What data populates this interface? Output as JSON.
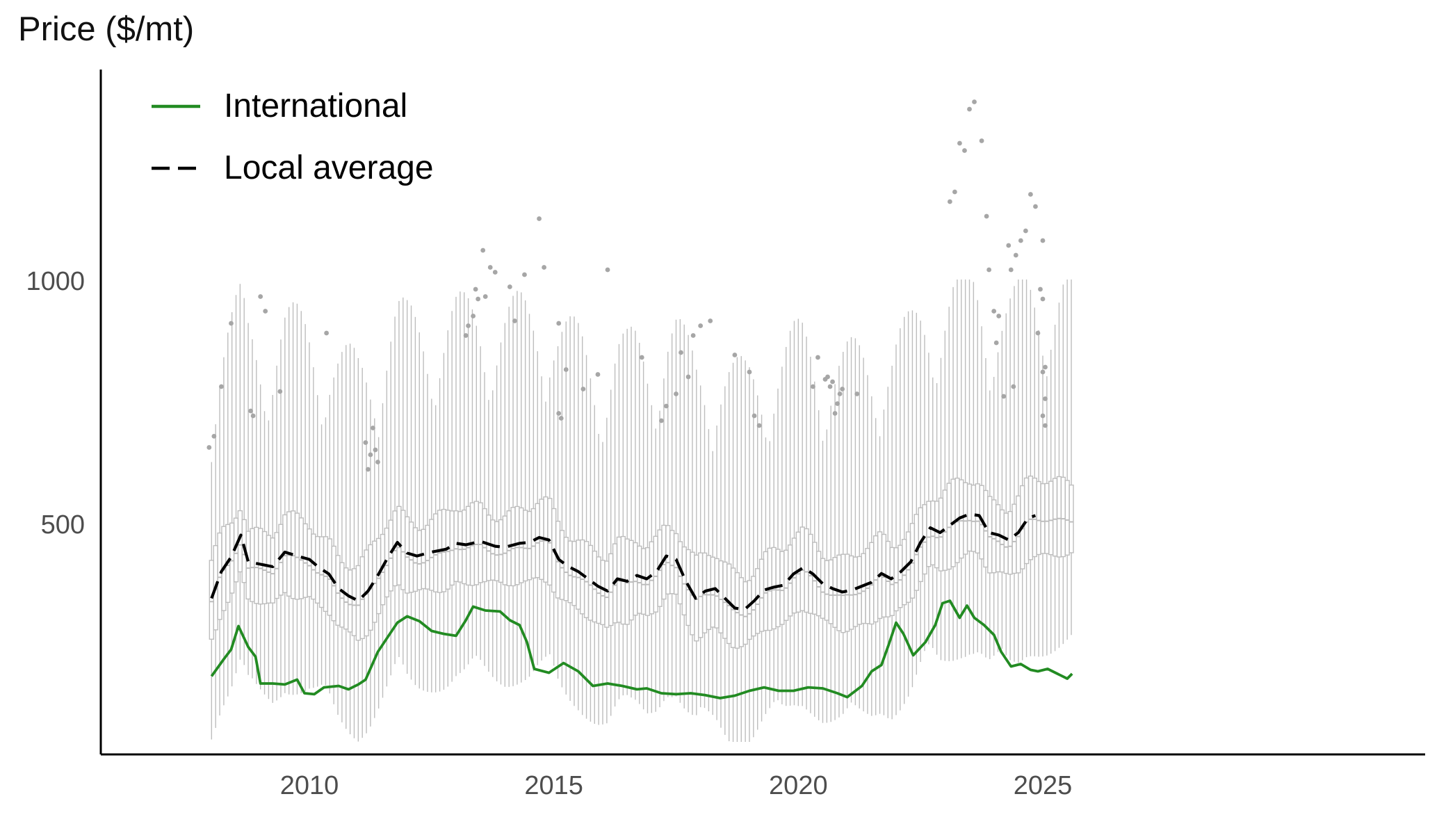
{
  "chart_data": {
    "type": "line",
    "ylabel": "Price ($/mt)",
    "xlabel": "",
    "xlim": [
      2007.0,
      2025.5
    ],
    "ylim": [
      0,
      1400
    ],
    "x_ticks": [
      2010,
      2015,
      2020,
      2025
    ],
    "y_ticks": [
      500,
      1000
    ],
    "grid": false,
    "legend_position": "top-left",
    "legend": [
      {
        "name": "International",
        "style": "solid",
        "color": "#228B22"
      },
      {
        "name": "Local average",
        "style": "dashed",
        "color": "#000000"
      }
    ],
    "box_color": "#BDBDBD",
    "outlier_color": "#A6A6A6",
    "series": [
      {
        "name": "International",
        "style": "solid",
        "color": "#228B22",
        "points": [
          [
            2008.0,
            185
          ],
          [
            2008.25,
            220
          ],
          [
            2008.4,
            240
          ],
          [
            2008.55,
            288
          ],
          [
            2008.75,
            245
          ],
          [
            2008.9,
            225
          ],
          [
            2009.0,
            170
          ],
          [
            2009.25,
            170
          ],
          [
            2009.5,
            168
          ],
          [
            2009.75,
            178
          ],
          [
            2009.9,
            150
          ],
          [
            2010.1,
            148
          ],
          [
            2010.3,
            162
          ],
          [
            2010.6,
            165
          ],
          [
            2010.8,
            158
          ],
          [
            2011.0,
            168
          ],
          [
            2011.15,
            178
          ],
          [
            2011.4,
            235
          ],
          [
            2011.6,
            265
          ],
          [
            2011.8,
            295
          ],
          [
            2012.0,
            308
          ],
          [
            2012.25,
            298
          ],
          [
            2012.5,
            278
          ],
          [
            2012.75,
            272
          ],
          [
            2013.0,
            268
          ],
          [
            2013.2,
            300
          ],
          [
            2013.35,
            328
          ],
          [
            2013.6,
            320
          ],
          [
            2013.9,
            318
          ],
          [
            2014.1,
            300
          ],
          [
            2014.3,
            290
          ],
          [
            2014.45,
            255
          ],
          [
            2014.6,
            200
          ],
          [
            2014.9,
            192
          ],
          [
            2015.2,
            212
          ],
          [
            2015.5,
            195
          ],
          [
            2015.8,
            165
          ],
          [
            2016.1,
            170
          ],
          [
            2016.4,
            165
          ],
          [
            2016.7,
            158
          ],
          [
            2016.9,
            160
          ],
          [
            2017.2,
            150
          ],
          [
            2017.5,
            148
          ],
          [
            2017.8,
            150
          ],
          [
            2018.1,
            146
          ],
          [
            2018.4,
            140
          ],
          [
            2018.7,
            145
          ],
          [
            2019.0,
            155
          ],
          [
            2019.3,
            162
          ],
          [
            2019.6,
            155
          ],
          [
            2019.9,
            155
          ],
          [
            2020.2,
            162
          ],
          [
            2020.5,
            160
          ],
          [
            2020.8,
            150
          ],
          [
            2021.0,
            142
          ],
          [
            2021.3,
            165
          ],
          [
            2021.5,
            195
          ],
          [
            2021.7,
            208
          ],
          [
            2021.85,
            250
          ],
          [
            2022.0,
            295
          ],
          [
            2022.15,
            272
          ],
          [
            2022.35,
            228
          ],
          [
            2022.6,
            255
          ],
          [
            2022.8,
            290
          ],
          [
            2022.95,
            335
          ],
          [
            2023.1,
            340
          ],
          [
            2023.3,
            305
          ],
          [
            2023.45,
            330
          ],
          [
            2023.6,
            305
          ],
          [
            2023.8,
            290
          ],
          [
            2024.0,
            270
          ],
          [
            2024.15,
            235
          ],
          [
            2024.35,
            205
          ],
          [
            2024.55,
            210
          ],
          [
            2024.75,
            198
          ],
          [
            2024.9,
            195
          ],
          [
            2025.1,
            200
          ],
          [
            2025.3,
            190
          ],
          [
            2025.5,
            180
          ],
          [
            2025.6,
            190
          ]
        ]
      },
      {
        "name": "Local average",
        "style": "dashed",
        "color": "#000000",
        "points": [
          [
            2008.0,
            345
          ],
          [
            2008.2,
            400
          ],
          [
            2008.4,
            430
          ],
          [
            2008.6,
            475
          ],
          [
            2008.75,
            420
          ],
          [
            2009.0,
            415
          ],
          [
            2009.25,
            410
          ],
          [
            2009.5,
            440
          ],
          [
            2009.75,
            432
          ],
          [
            2010.0,
            425
          ],
          [
            2010.2,
            408
          ],
          [
            2010.4,
            395
          ],
          [
            2010.6,
            365
          ],
          [
            2010.8,
            350
          ],
          [
            2011.0,
            340
          ],
          [
            2011.2,
            360
          ],
          [
            2011.4,
            392
          ],
          [
            2011.6,
            428
          ],
          [
            2011.8,
            460
          ],
          [
            2012.0,
            438
          ],
          [
            2012.2,
            432
          ],
          [
            2012.5,
            440
          ],
          [
            2012.8,
            446
          ],
          [
            2013.0,
            458
          ],
          [
            2013.2,
            455
          ],
          [
            2013.5,
            462
          ],
          [
            2013.8,
            452
          ],
          [
            2014.0,
            450
          ],
          [
            2014.3,
            458
          ],
          [
            2014.5,
            460
          ],
          [
            2014.7,
            470
          ],
          [
            2014.9,
            465
          ],
          [
            2015.1,
            425
          ],
          [
            2015.3,
            410
          ],
          [
            2015.5,
            400
          ],
          [
            2015.7,
            385
          ],
          [
            2015.9,
            370
          ],
          [
            2016.1,
            360
          ],
          [
            2016.3,
            385
          ],
          [
            2016.5,
            380
          ],
          [
            2016.7,
            392
          ],
          [
            2016.9,
            385
          ],
          [
            2017.1,
            400
          ],
          [
            2017.3,
            432
          ],
          [
            2017.5,
            425
          ],
          [
            2017.7,
            380
          ],
          [
            2017.9,
            345
          ],
          [
            2018.1,
            360
          ],
          [
            2018.3,
            365
          ],
          [
            2018.5,
            345
          ],
          [
            2018.7,
            325
          ],
          [
            2018.9,
            322
          ],
          [
            2019.1,
            340
          ],
          [
            2019.3,
            362
          ],
          [
            2019.5,
            368
          ],
          [
            2019.7,
            372
          ],
          [
            2019.9,
            395
          ],
          [
            2020.1,
            408
          ],
          [
            2020.3,
            395
          ],
          [
            2020.5,
            375
          ],
          [
            2020.7,
            365
          ],
          [
            2020.9,
            358
          ],
          [
            2021.1,
            362
          ],
          [
            2021.3,
            370
          ],
          [
            2021.5,
            378
          ],
          [
            2021.7,
            396
          ],
          [
            2021.9,
            385
          ],
          [
            2022.1,
            400
          ],
          [
            2022.3,
            420
          ],
          [
            2022.5,
            460
          ],
          [
            2022.7,
            490
          ],
          [
            2022.9,
            480
          ],
          [
            2023.1,
            495
          ],
          [
            2023.3,
            510
          ],
          [
            2023.5,
            518
          ],
          [
            2023.7,
            515
          ],
          [
            2023.9,
            480
          ],
          [
            2024.1,
            475
          ],
          [
            2024.3,
            465
          ],
          [
            2024.5,
            480
          ],
          [
            2024.7,
            510
          ],
          [
            2024.85,
            515
          ]
        ]
      }
    ],
    "outliers": [
      [
        2007.95,
        655
      ],
      [
        2008.05,
        678
      ],
      [
        2008.2,
        780
      ],
      [
        2008.4,
        910
      ],
      [
        2008.8,
        730
      ],
      [
        2008.85,
        720
      ],
      [
        2009.0,
        965
      ],
      [
        2009.1,
        935
      ],
      [
        2009.4,
        770
      ],
      [
        2010.35,
        890
      ],
      [
        2011.15,
        665
      ],
      [
        2011.2,
        610
      ],
      [
        2011.25,
        640
      ],
      [
        2011.3,
        695
      ],
      [
        2011.35,
        650
      ],
      [
        2011.4,
        625
      ],
      [
        2013.2,
        885
      ],
      [
        2013.25,
        905
      ],
      [
        2013.35,
        925
      ],
      [
        2013.4,
        980
      ],
      [
        2013.45,
        960
      ],
      [
        2013.55,
        1060
      ],
      [
        2013.6,
        965
      ],
      [
        2013.7,
        1025
      ],
      [
        2013.8,
        1015
      ],
      [
        2014.1,
        985
      ],
      [
        2014.2,
        915
      ],
      [
        2014.4,
        1010
      ],
      [
        2014.7,
        1125
      ],
      [
        2014.8,
        1025
      ],
      [
        2015.1,
        910
      ],
      [
        2015.25,
        815
      ],
      [
        2015.1,
        725
      ],
      [
        2015.15,
        715
      ],
      [
        2015.6,
        775
      ],
      [
        2015.9,
        805
      ],
      [
        2016.1,
        1020
      ],
      [
        2016.8,
        840
      ],
      [
        2017.2,
        710
      ],
      [
        2017.3,
        740
      ],
      [
        2017.5,
        765
      ],
      [
        2017.6,
        850
      ],
      [
        2017.75,
        800
      ],
      [
        2017.85,
        885
      ],
      [
        2018.0,
        905
      ],
      [
        2018.2,
        915
      ],
      [
        2018.7,
        845
      ],
      [
        2019.0,
        810
      ],
      [
        2019.1,
        720
      ],
      [
        2019.2,
        700
      ],
      [
        2020.3,
        780
      ],
      [
        2020.4,
        840
      ],
      [
        2020.55,
        795
      ],
      [
        2020.6,
        800
      ],
      [
        2020.65,
        780
      ],
      [
        2020.7,
        790
      ],
      [
        2020.75,
        725
      ],
      [
        2020.8,
        745
      ],
      [
        2020.85,
        765
      ],
      [
        2020.9,
        775
      ],
      [
        2021.2,
        765
      ],
      [
        2023.1,
        1160
      ],
      [
        2023.2,
        1180
      ],
      [
        2023.3,
        1280
      ],
      [
        2023.4,
        1265
      ],
      [
        2023.5,
        1350
      ],
      [
        2023.6,
        1365
      ],
      [
        2023.75,
        1285
      ],
      [
        2023.85,
        1130
      ],
      [
        2023.9,
        1020
      ],
      [
        2024.0,
        935
      ],
      [
        2024.05,
        870
      ],
      [
        2024.1,
        925
      ],
      [
        2024.3,
        1070
      ],
      [
        2024.35,
        1020
      ],
      [
        2024.45,
        1050
      ],
      [
        2024.55,
        1080
      ],
      [
        2024.65,
        1100
      ],
      [
        2024.75,
        1175
      ],
      [
        2024.85,
        1150
      ],
      [
        2025.0,
        1080
      ],
      [
        2024.9,
        890
      ],
      [
        2024.95,
        980
      ],
      [
        2025.0,
        960
      ],
      [
        2025.05,
        820
      ],
      [
        2025.0,
        810
      ],
      [
        2025.05,
        755
      ],
      [
        2025.0,
        720
      ],
      [
        2025.05,
        700
      ],
      [
        2024.4,
        780
      ],
      [
        2024.2,
        760
      ]
    ]
  }
}
